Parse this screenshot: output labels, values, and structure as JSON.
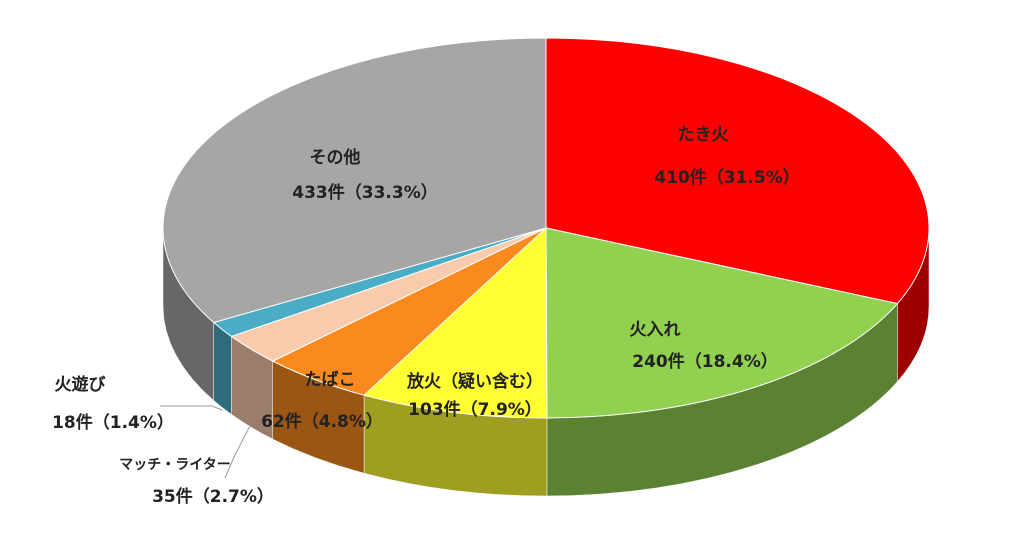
{
  "chart_data": {
    "type": "pie3d",
    "categories": [
      "たき火",
      "火入れ",
      "放火（疑い含む）",
      "たばこ",
      "マッチ・ライター",
      "火遊び",
      "その他"
    ],
    "values": [
      410,
      240,
      103,
      62,
      35,
      18,
      433
    ],
    "value_labels": [
      "410件（31.5%）",
      "240件（18.4%）",
      "103件（7.9%）",
      "62件（4.8%）",
      "35件（2.7%）",
      "18件（1.4%）",
      "433件（33.3%）"
    ],
    "colors": [
      "#ff0000",
      "#92d050",
      "#ffff33",
      "#fb8a1e",
      "#f8cbad",
      "#4bacc6",
      "#a6a6a6"
    ]
  }
}
